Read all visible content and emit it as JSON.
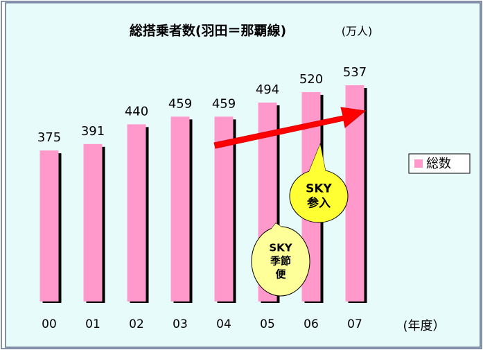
{
  "chart_data": {
    "type": "bar",
    "title": "総搭乗者数(羽田＝那覇線)",
    "unit": "(万人)",
    "x_label": "(年度）",
    "categories": [
      "00",
      "01",
      "02",
      "03",
      "04",
      "05",
      "06",
      "07"
    ],
    "series": [
      {
        "name": "総数",
        "color": "#ff99cc",
        "values": [
          375,
          391,
          440,
          459,
          459,
          494,
          520,
          537
        ]
      }
    ],
    "legend": "right",
    "annotations": [
      {
        "lines": [
          "SKY",
          "参入"
        ],
        "color": "#ffff33"
      },
      {
        "lines": [
          "SKY",
          "季節",
          "便"
        ],
        "color": "#ffff99"
      }
    ]
  }
}
